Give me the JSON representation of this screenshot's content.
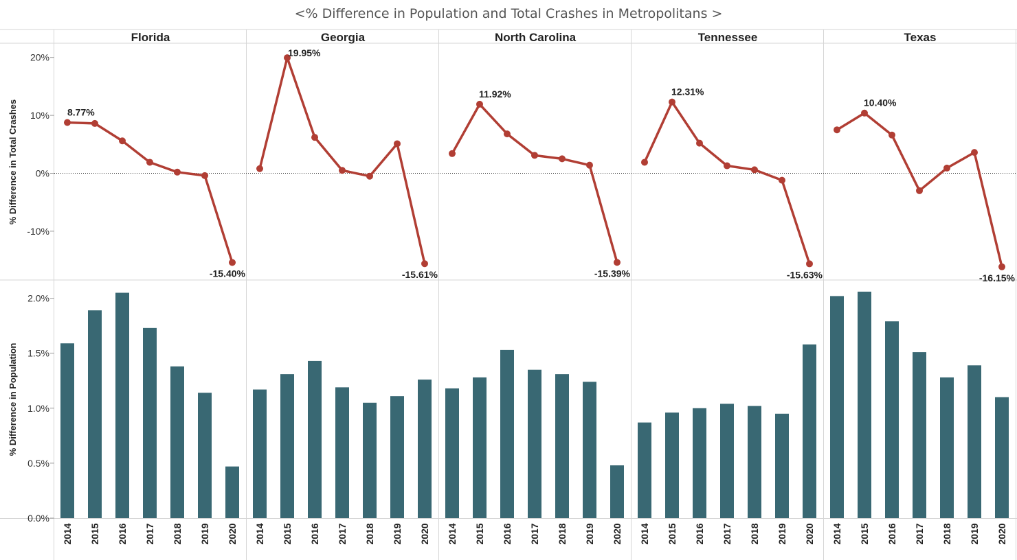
{
  "title": "<% Difference in Population and Total Crashes in Metropolitans >",
  "colors": {
    "line": "#b13e34",
    "bar": "#396873",
    "grid": "#d6d6d6",
    "zero": "#333333"
  },
  "chart_data": [
    {
      "type": "line",
      "ylabel": "% Difference in Total Crashes",
      "ylim": [
        -18,
        20
      ],
      "yticks": [
        "20%",
        "10%",
        "0%",
        "-10%"
      ],
      "ytick_values": [
        20,
        10,
        0,
        -10
      ],
      "zero_line": "dotted",
      "x": [
        "2014",
        "2015",
        "2016",
        "2017",
        "2018",
        "2019",
        "2020"
      ],
      "panels": [
        {
          "state": "Florida",
          "values": [
            8.77,
            8.6,
            5.6,
            1.9,
            0.2,
            -0.4,
            -15.4
          ],
          "labels": [
            {
              "index": 0,
              "text": "8.77%",
              "pos": "above"
            },
            {
              "index": 6,
              "text": "-15.40%",
              "pos": "below"
            }
          ]
        },
        {
          "state": "Georgia",
          "values": [
            0.8,
            19.95,
            6.2,
            0.5,
            -0.5,
            5.1,
            -15.61
          ],
          "labels": [
            {
              "index": 1,
              "text": "19.95%",
              "pos": "right"
            },
            {
              "index": 6,
              "text": "-15.61%",
              "pos": "below"
            }
          ]
        },
        {
          "state": "North Carolina",
          "values": [
            3.4,
            11.92,
            6.8,
            3.1,
            2.5,
            1.4,
            -15.39
          ],
          "labels": [
            {
              "index": 1,
              "text": "11.92%",
              "pos": "above"
            },
            {
              "index": 6,
              "text": "-15.39%",
              "pos": "below"
            }
          ]
        },
        {
          "state": "Tennessee",
          "values": [
            1.9,
            12.31,
            5.2,
            1.3,
            0.6,
            -1.2,
            -15.63
          ],
          "labels": [
            {
              "index": 1,
              "text": "12.31%",
              "pos": "above"
            },
            {
              "index": 6,
              "text": "-15.63%",
              "pos": "below"
            }
          ]
        },
        {
          "state": "Texas",
          "values": [
            7.5,
            10.4,
            6.6,
            -3.0,
            0.9,
            3.6,
            -16.15
          ],
          "labels": [
            {
              "index": 1,
              "text": "10.40%",
              "pos": "above"
            },
            {
              "index": 6,
              "text": "-16.15%",
              "pos": "below"
            }
          ]
        }
      ]
    },
    {
      "type": "bar",
      "ylabel": "% Difference in Population",
      "ylim": [
        0,
        2.05
      ],
      "yticks": [
        "2.0%",
        "1.5%",
        "1.0%",
        "0.5%",
        "0.0%"
      ],
      "ytick_values": [
        2.0,
        1.5,
        1.0,
        0.5,
        0.0
      ],
      "categories": [
        "2014",
        "2015",
        "2016",
        "2017",
        "2018",
        "2019",
        "2020"
      ],
      "panels": [
        {
          "state": "Florida",
          "values": [
            1.59,
            1.89,
            2.05,
            1.73,
            1.38,
            1.14,
            0.47
          ]
        },
        {
          "state": "Georgia",
          "values": [
            1.17,
            1.31,
            1.43,
            1.19,
            1.05,
            1.11,
            1.26
          ]
        },
        {
          "state": "North Carolina",
          "values": [
            1.18,
            1.28,
            1.53,
            1.35,
            1.31,
            1.24,
            0.48
          ]
        },
        {
          "state": "Tennessee",
          "values": [
            0.87,
            0.96,
            1.0,
            1.04,
            1.02,
            0.95,
            1.58
          ]
        },
        {
          "state": "Texas",
          "values": [
            2.02,
            2.06,
            1.79,
            1.51,
            1.28,
            1.39,
            1.1
          ]
        }
      ]
    }
  ]
}
